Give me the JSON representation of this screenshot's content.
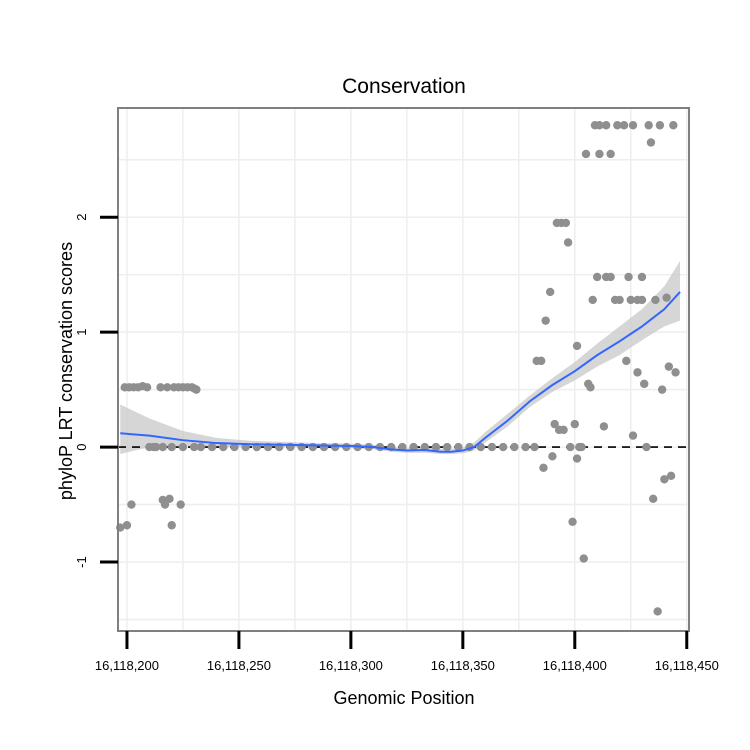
{
  "chart_data": {
    "type": "scatter",
    "title": "Conservation",
    "xlabel": "Genomic Position",
    "ylabel": "phyloP LRT conservation scores",
    "xlim": [
      16118196,
      16118451
    ],
    "ylim": [
      -1.6,
      2.95
    ],
    "x_ticks": [
      {
        "value": 16118200,
        "label": "16,118,200"
      },
      {
        "value": 16118250,
        "label": "16,118,250"
      },
      {
        "value": 16118300,
        "label": "16,118,300"
      },
      {
        "value": 16118350,
        "label": "16,118,350"
      },
      {
        "value": 16118400,
        "label": "16,118,400"
      },
      {
        "value": 16118450,
        "label": "16,118,450"
      }
    ],
    "y_ticks": [
      {
        "value": -1,
        "label": "-1"
      },
      {
        "value": 0,
        "label": "0"
      },
      {
        "value": 1,
        "label": "1"
      },
      {
        "value": 2,
        "label": "2"
      }
    ],
    "reference_line": {
      "y": 0,
      "style": "dashed"
    },
    "colors": {
      "points": "#8f8f8f",
      "smooth": "#3366ff",
      "ribbon": "#c8c8c8",
      "panel_border": "#7f7f7f",
      "grid": "#eeeeee"
    },
    "points": [
      [
        16118197,
        -0.7
      ],
      [
        16118199,
        0.52
      ],
      [
        16118200,
        -0.68
      ],
      [
        16118201,
        0.52
      ],
      [
        16118202,
        -0.5
      ],
      [
        16118203,
        0.52
      ],
      [
        16118205,
        0.52
      ],
      [
        16118207,
        0.53
      ],
      [
        16118209,
        0.52
      ],
      [
        16118210,
        0
      ],
      [
        16118212,
        0
      ],
      [
        16118213,
        0
      ],
      [
        16118215,
        0.52
      ],
      [
        16118216,
        -0.46
      ],
      [
        16118217,
        -0.5
      ],
      [
        16118218,
        0.52
      ],
      [
        16118219,
        -0.45
      ],
      [
        16118220,
        -0.68
      ],
      [
        16118221,
        0.52
      ],
      [
        16118223,
        0.52
      ],
      [
        16118224,
        -0.5
      ],
      [
        16118225,
        0.52
      ],
      [
        16118227,
        0.52
      ],
      [
        16118229,
        0.52
      ],
      [
        16118230,
        0.51
      ],
      [
        16118231,
        0.5
      ],
      [
        16118216,
        0
      ],
      [
        16118220,
        0
      ],
      [
        16118225,
        0
      ],
      [
        16118230,
        0
      ],
      [
        16118233,
        0
      ],
      [
        16118238,
        0
      ],
      [
        16118243,
        0
      ],
      [
        16118248,
        0
      ],
      [
        16118253,
        0
      ],
      [
        16118258,
        0
      ],
      [
        16118263,
        0
      ],
      [
        16118268,
        0
      ],
      [
        16118273,
        0
      ],
      [
        16118278,
        0
      ],
      [
        16118283,
        0
      ],
      [
        16118288,
        0
      ],
      [
        16118293,
        0
      ],
      [
        16118298,
        0
      ],
      [
        16118303,
        0
      ],
      [
        16118308,
        0
      ],
      [
        16118313,
        0
      ],
      [
        16118318,
        0
      ],
      [
        16118323,
        0
      ],
      [
        16118328,
        0
      ],
      [
        16118333,
        0
      ],
      [
        16118338,
        0
      ],
      [
        16118343,
        0
      ],
      [
        16118348,
        0
      ],
      [
        16118353,
        0
      ],
      [
        16118358,
        0
      ],
      [
        16118363,
        0
      ],
      [
        16118368,
        0
      ],
      [
        16118373,
        0
      ],
      [
        16118378,
        0
      ],
      [
        16118382,
        0
      ],
      [
        16118383,
        0.75
      ],
      [
        16118385,
        0.75
      ],
      [
        16118386,
        -0.18
      ],
      [
        16118387,
        1.1
      ],
      [
        16118389,
        1.35
      ],
      [
        16118390,
        -0.08
      ],
      [
        16118391,
        0.2
      ],
      [
        16118392,
        1.95
      ],
      [
        16118393,
        0.15
      ],
      [
        16118394,
        1.95
      ],
      [
        16118395,
        0.15
      ],
      [
        16118396,
        1.95
      ],
      [
        16118397,
        1.78
      ],
      [
        16118398,
        0
      ],
      [
        16118399,
        -0.65
      ],
      [
        16118400,
        0.2
      ],
      [
        16118401,
        0.88
      ],
      [
        16118401,
        -0.1
      ],
      [
        16118402,
        0
      ],
      [
        16118403,
        0
      ],
      [
        16118404,
        -0.97
      ],
      [
        16118405,
        2.55
      ],
      [
        16118406,
        0.55
      ],
      [
        16118407,
        0.52
      ],
      [
        16118408,
        1.28
      ],
      [
        16118409,
        2.8
      ],
      [
        16118410,
        1.48
      ],
      [
        16118411,
        2.55
      ],
      [
        16118411,
        2.8
      ],
      [
        16118413,
        0.18
      ],
      [
        16118414,
        2.8
      ],
      [
        16118414,
        1.48
      ],
      [
        16118416,
        2.55
      ],
      [
        16118416,
        1.48
      ],
      [
        16118418,
        1.28
      ],
      [
        16118419,
        2.8
      ],
      [
        16118420,
        1.28
      ],
      [
        16118422,
        2.8
      ],
      [
        16118423,
        0.75
      ],
      [
        16118424,
        1.48
      ],
      [
        16118425,
        1.28
      ],
      [
        16118426,
        0.1
      ],
      [
        16118426,
        2.8
      ],
      [
        16118428,
        1.28
      ],
      [
        16118428,
        0.65
      ],
      [
        16118430,
        1.48
      ],
      [
        16118430,
        1.28
      ],
      [
        16118431,
        0.55
      ],
      [
        16118432,
        0
      ],
      [
        16118433,
        2.8
      ],
      [
        16118434,
        2.65
      ],
      [
        16118435,
        -0.45
      ],
      [
        16118436,
        1.28
      ],
      [
        16118437,
        -1.43
      ],
      [
        16118438,
        2.8
      ],
      [
        16118439,
        0.5
      ],
      [
        16118440,
        -0.28
      ],
      [
        16118441,
        1.3
      ],
      [
        16118442,
        0.7
      ],
      [
        16118443,
        -0.25
      ],
      [
        16118444,
        2.8
      ],
      [
        16118445,
        0.65
      ]
    ],
    "smooth": {
      "x": [
        16118197,
        16118210,
        16118225,
        16118240,
        16118255,
        16118270,
        16118285,
        16118300,
        16118310,
        16118318,
        16118325,
        16118333,
        16118340,
        16118345,
        16118350,
        16118355,
        16118360,
        16118370,
        16118380,
        16118390,
        16118400,
        16118410,
        16118420,
        16118430,
        16118440,
        16118447
      ],
      "y": [
        0.12,
        0.1,
        0.06,
        0.035,
        0.025,
        0.02,
        0.015,
        0.01,
        0.0,
        -0.02,
        -0.03,
        -0.025,
        -0.04,
        -0.04,
        -0.03,
        0.0,
        0.08,
        0.23,
        0.4,
        0.54,
        0.66,
        0.8,
        0.92,
        1.05,
        1.2,
        1.35
      ],
      "lower": [
        -0.06,
        0.0,
        0.01,
        0.0,
        0.0,
        0.0,
        -0.005,
        -0.01,
        -0.02,
        -0.04,
        -0.05,
        -0.05,
        -0.06,
        -0.06,
        -0.055,
        -0.03,
        0.04,
        0.18,
        0.35,
        0.48,
        0.58,
        0.7,
        0.8,
        0.93,
        1.05,
        1.1
      ],
      "upper": [
        0.37,
        0.25,
        0.14,
        0.08,
        0.055,
        0.045,
        0.035,
        0.03,
        0.02,
        0.0,
        -0.01,
        0.0,
        -0.015,
        -0.015,
        -0.005,
        0.04,
        0.13,
        0.29,
        0.45,
        0.6,
        0.74,
        0.9,
        1.05,
        1.2,
        1.4,
        1.62
      ]
    }
  }
}
